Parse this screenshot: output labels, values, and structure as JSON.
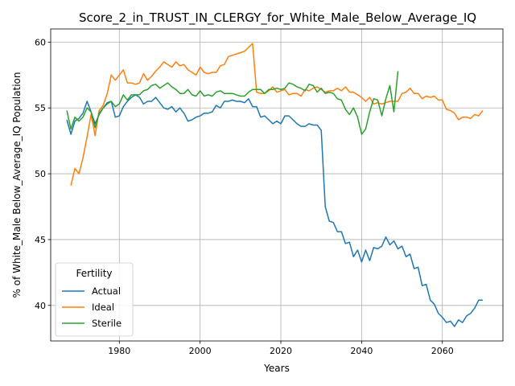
{
  "chart_data": {
    "type": "line",
    "title": "Score_2_in_TRUST_IN_CLERGY_for_White_Male_Below_Average_IQ",
    "xlabel": "Years",
    "ylabel": "% of White_Male Below_Average_IQ Population",
    "xlim": [
      1963,
      2075
    ],
    "ylim": [
      37.3,
      61.0
    ],
    "x_ticks": [
      1980,
      2000,
      2020,
      2040,
      2060
    ],
    "y_ticks": [
      40,
      45,
      50,
      55,
      60
    ],
    "grid": true,
    "legend": {
      "title": "Fertility",
      "placement": "lower-left"
    },
    "series": [
      {
        "name": "Actual",
        "color": "#1f77b4",
        "x": [
          1967,
          1968,
          1969,
          1970,
          1971,
          1972,
          1973,
          1974,
          1975,
          1976,
          1977,
          1978,
          1979,
          1980,
          1981,
          1982,
          1983,
          1984,
          1985,
          1986,
          1987,
          1988,
          1989,
          1990,
          1991,
          1992,
          1993,
          1994,
          1995,
          1996,
          1997,
          1998,
          1999,
          2000,
          2001,
          2002,
          2003,
          2004,
          2005,
          2006,
          2007,
          2008,
          2009,
          2010,
          2011,
          2012,
          2013,
          2014,
          2015,
          2016,
          2017,
          2018,
          2019,
          2020,
          2021,
          2022,
          2023,
          2024,
          2025,
          2026,
          2027,
          2028,
          2029,
          2030,
          2031,
          2032,
          2033,
          2034,
          2035,
          2036,
          2037,
          2038,
          2039,
          2040,
          2041,
          2042,
          2043,
          2044,
          2045,
          2046,
          2047,
          2048,
          2049,
          2050,
          2051,
          2052,
          2053,
          2054,
          2055,
          2056,
          2057,
          2058,
          2059,
          2060,
          2061,
          2062,
          2063,
          2064,
          2065,
          2066,
          2067,
          2068,
          2069,
          2070
        ],
        "values": [
          54.1,
          53.0,
          54.0,
          54.2,
          54.6,
          55.5,
          54.7,
          53.8,
          54.5,
          55.0,
          55.4,
          55.5,
          54.3,
          54.4,
          55.1,
          55.5,
          55.8,
          56.0,
          55.8,
          55.3,
          55.5,
          55.5,
          55.8,
          55.4,
          55.0,
          54.9,
          55.1,
          54.7,
          55.0,
          54.6,
          54.0,
          54.1,
          54.3,
          54.4,
          54.6,
          54.6,
          54.7,
          55.2,
          55.0,
          55.5,
          55.5,
          55.6,
          55.5,
          55.5,
          55.4,
          55.7,
          55.1,
          55.1,
          54.3,
          54.4,
          54.1,
          53.8,
          54.0,
          53.8,
          54.4,
          54.4,
          54.1,
          53.8,
          53.6,
          53.6,
          53.8,
          53.7,
          53.7,
          53.3,
          47.5,
          46.4,
          46.3,
          45.6,
          45.6,
          44.7,
          44.8,
          43.7,
          44.2,
          43.3,
          44.2,
          43.4,
          44.4,
          44.3,
          44.5,
          45.2,
          44.6,
          44.9,
          44.3,
          44.5,
          43.7,
          43.9,
          42.8,
          42.9,
          41.5,
          41.6,
          40.4,
          40.1,
          39.4,
          39.1,
          38.7,
          38.8,
          38.4,
          38.9,
          38.7,
          39.2,
          39.4,
          39.8,
          40.4,
          40.4
        ]
      },
      {
        "name": "Ideal",
        "color": "#ff7f0e",
        "x": [
          1968,
          1969,
          1970,
          1971,
          1972,
          1973,
          1974,
          1975,
          1976,
          1977,
          1978,
          1979,
          1980,
          1981,
          1982,
          1983,
          1984,
          1985,
          1986,
          1987,
          1988,
          1989,
          1990,
          1991,
          1992,
          1993,
          1994,
          1995,
          1996,
          1997,
          1998,
          1999,
          2000,
          2001,
          2002,
          2003,
          2004,
          2005,
          2006,
          2007,
          2008,
          2009,
          2010,
          2011,
          2012,
          2013,
          2014,
          2015,
          2016,
          2017,
          2018,
          2019,
          2020,
          2021,
          2022,
          2023,
          2024,
          2025,
          2026,
          2027,
          2028,
          2029,
          2030,
          2031,
          2032,
          2033,
          2034,
          2035,
          2036,
          2037,
          2038,
          2039,
          2040,
          2041,
          2042,
          2043,
          2044,
          2045,
          2046,
          2047,
          2048,
          2049,
          2050,
          2051,
          2052,
          2053,
          2054,
          2055,
          2056,
          2057,
          2058,
          2059,
          2060,
          2061,
          2062,
          2063,
          2064,
          2065,
          2066,
          2067,
          2068,
          2069,
          2070
        ],
        "values": [
          49.1,
          50.4,
          50.0,
          51.2,
          52.8,
          54.5,
          52.9,
          54.8,
          55.2,
          56.1,
          57.5,
          57.1,
          57.5,
          57.9,
          56.9,
          56.9,
          56.8,
          56.9,
          57.6,
          57.1,
          57.4,
          57.8,
          58.1,
          58.5,
          58.3,
          58.1,
          58.5,
          58.2,
          58.3,
          57.9,
          57.7,
          57.5,
          58.1,
          57.7,
          57.6,
          57.7,
          57.7,
          58.2,
          58.3,
          58.9,
          59.0,
          59.1,
          59.2,
          59.3,
          59.6,
          59.9,
          56.2,
          56.1,
          56.1,
          56.3,
          56.6,
          56.2,
          56.3,
          56.4,
          56.0,
          56.1,
          56.1,
          55.9,
          56.4,
          56.3,
          56.5,
          56.6,
          56.4,
          56.2,
          56.3,
          56.3,
          56.5,
          56.3,
          56.6,
          56.2,
          56.2,
          56.0,
          55.8,
          55.5,
          55.8,
          55.3,
          55.4,
          55.3,
          55.4,
          55.5,
          55.5,
          55.5,
          56.1,
          56.2,
          56.5,
          56.1,
          56.1,
          55.7,
          55.9,
          55.8,
          55.9,
          55.6,
          55.6,
          54.9,
          54.8,
          54.6,
          54.1,
          54.3,
          54.3,
          54.2,
          54.5,
          54.4,
          54.8
        ]
      },
      {
        "name": "Sterile",
        "color": "#2ca02c",
        "x": [
          1967,
          1968,
          1969,
          1970,
          1971,
          1972,
          1973,
          1974,
          1975,
          1976,
          1977,
          1978,
          1979,
          1980,
          1981,
          1982,
          1983,
          1984,
          1985,
          1986,
          1987,
          1988,
          1989,
          1990,
          1991,
          1992,
          1993,
          1994,
          1995,
          1996,
          1997,
          1998,
          1999,
          2000,
          2001,
          2002,
          2003,
          2004,
          2005,
          2006,
          2007,
          2008,
          2009,
          2010,
          2011,
          2012,
          2013,
          2014,
          2015,
          2016,
          2017,
          2018,
          2019,
          2020,
          2021,
          2022,
          2023,
          2024,
          2025,
          2026,
          2027,
          2028,
          2029,
          2030,
          2031,
          2032,
          2033,
          2034,
          2035,
          2036,
          2037,
          2038,
          2039,
          2040,
          2041,
          2042,
          2043,
          2044,
          2045,
          2046,
          2047,
          2048,
          2049,
          2050
        ],
        "values": [
          54.8,
          53.4,
          54.3,
          54.0,
          54.3,
          55.0,
          54.7,
          53.5,
          54.6,
          55.0,
          55.3,
          55.5,
          55.1,
          55.3,
          56.0,
          55.6,
          56.0,
          56.0,
          56.0,
          56.3,
          56.4,
          56.7,
          56.8,
          56.5,
          56.7,
          56.9,
          56.6,
          56.4,
          56.1,
          56.1,
          56.4,
          56.0,
          55.9,
          56.3,
          55.9,
          56.0,
          55.9,
          56.2,
          56.3,
          56.1,
          56.1,
          56.1,
          56.0,
          55.9,
          55.9,
          56.2,
          56.4,
          56.4,
          56.4,
          56.1,
          56.4,
          56.4,
          56.5,
          56.4,
          56.5,
          56.9,
          56.8,
          56.6,
          56.5,
          56.3,
          56.8,
          56.7,
          56.2,
          56.5,
          56.1,
          56.2,
          56.1,
          55.7,
          55.6,
          54.9,
          54.5,
          55.0,
          54.3,
          53.0,
          53.4,
          54.7,
          55.7,
          55.6,
          54.4,
          55.7,
          56.7,
          54.7,
          57.8,
          null
        ]
      }
    ]
  }
}
